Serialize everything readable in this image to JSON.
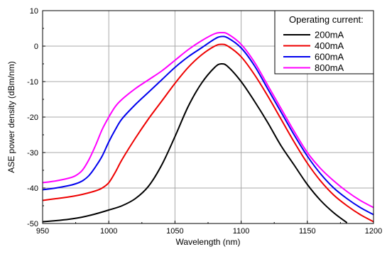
{
  "chart_data": {
    "type": "line",
    "xlabel": "Wavelength (nm)",
    "ylabel": "ASE power density (dBm/nm)",
    "xlim": [
      950,
      1200
    ],
    "ylim": [
      -50,
      10
    ],
    "xticks": [
      "950",
      "1000",
      "1050",
      "1100",
      "1150",
      "1200"
    ],
    "yticks": [
      "10",
      "0",
      "-10",
      "-20",
      "-30",
      "-40",
      "-50"
    ],
    "grid": true,
    "legend": {
      "title": "Operating current:",
      "placement": "top-right"
    },
    "series": [
      {
        "name": "200mA",
        "color": "#000000",
        "x": [
          950,
          960,
          970,
          980,
          990,
          1000,
          1010,
          1020,
          1030,
          1040,
          1050,
          1060,
          1070,
          1080,
          1085,
          1090,
          1100,
          1110,
          1120,
          1130,
          1140,
          1150,
          1160,
          1170,
          1180
        ],
        "y": [
          -49.5,
          -49.2,
          -48.8,
          -48.2,
          -47.3,
          -46.2,
          -45.0,
          -43.0,
          -39.5,
          -33.5,
          -25.5,
          -17.0,
          -10.5,
          -6.0,
          -5.0,
          -5.8,
          -10.0,
          -15.5,
          -21.5,
          -28.0,
          -33.5,
          -39.0,
          -43.5,
          -47.0,
          -49.8
        ]
      },
      {
        "name": "400mA",
        "color": "#ee0000",
        "x": [
          950,
          960,
          970,
          980,
          990,
          995,
          1000,
          1005,
          1010,
          1020,
          1030,
          1040,
          1050,
          1060,
          1070,
          1080,
          1085,
          1090,
          1100,
          1110,
          1120,
          1130,
          1140,
          1150,
          1160,
          1170,
          1180,
          1190,
          1200
        ],
        "y": [
          -43.5,
          -43.0,
          -42.5,
          -41.8,
          -40.8,
          -40.0,
          -38.5,
          -35.5,
          -32.0,
          -26.0,
          -20.5,
          -15.5,
          -10.5,
          -6.0,
          -2.5,
          0.0,
          0.5,
          0.0,
          -3.0,
          -8.0,
          -14.0,
          -20.5,
          -27.0,
          -33.0,
          -38.0,
          -42.0,
          -45.0,
          -47.5,
          -49.5
        ]
      },
      {
        "name": "600mA",
        "color": "#0000ee",
        "x": [
          950,
          960,
          970,
          975,
          980,
          985,
          990,
          995,
          1000,
          1005,
          1010,
          1020,
          1030,
          1040,
          1050,
          1060,
          1070,
          1080,
          1085,
          1090,
          1100,
          1110,
          1120,
          1130,
          1140,
          1150,
          1160,
          1170,
          1180,
          1190,
          1200
        ],
        "y": [
          -40.5,
          -40.0,
          -39.3,
          -38.8,
          -38.0,
          -36.5,
          -34.0,
          -31.0,
          -27.0,
          -23.5,
          -20.5,
          -16.5,
          -13.0,
          -9.5,
          -6.0,
          -3.0,
          -0.5,
          2.0,
          2.7,
          2.3,
          -0.5,
          -5.5,
          -12.0,
          -18.5,
          -25.0,
          -31.0,
          -36.0,
          -40.0,
          -43.0,
          -45.5,
          -47.5
        ]
      },
      {
        "name": "800mA",
        "color": "#ff00ff",
        "x": [
          950,
          960,
          970,
          975,
          980,
          985,
          990,
          995,
          1000,
          1005,
          1010,
          1020,
          1030,
          1040,
          1050,
          1060,
          1070,
          1080,
          1085,
          1090,
          1100,
          1110,
          1120,
          1130,
          1140,
          1150,
          1160,
          1170,
          1180,
          1190,
          1200
        ],
        "y": [
          -38.5,
          -38.0,
          -37.2,
          -36.5,
          -35.0,
          -32.0,
          -28.0,
          -23.5,
          -20.0,
          -17.0,
          -15.0,
          -12.0,
          -9.5,
          -7.0,
          -4.0,
          -1.0,
          1.5,
          3.5,
          3.8,
          3.4,
          0.5,
          -4.5,
          -11.0,
          -17.5,
          -24.0,
          -30.0,
          -34.5,
          -38.0,
          -41.0,
          -43.5,
          -45.5
        ]
      }
    ]
  }
}
